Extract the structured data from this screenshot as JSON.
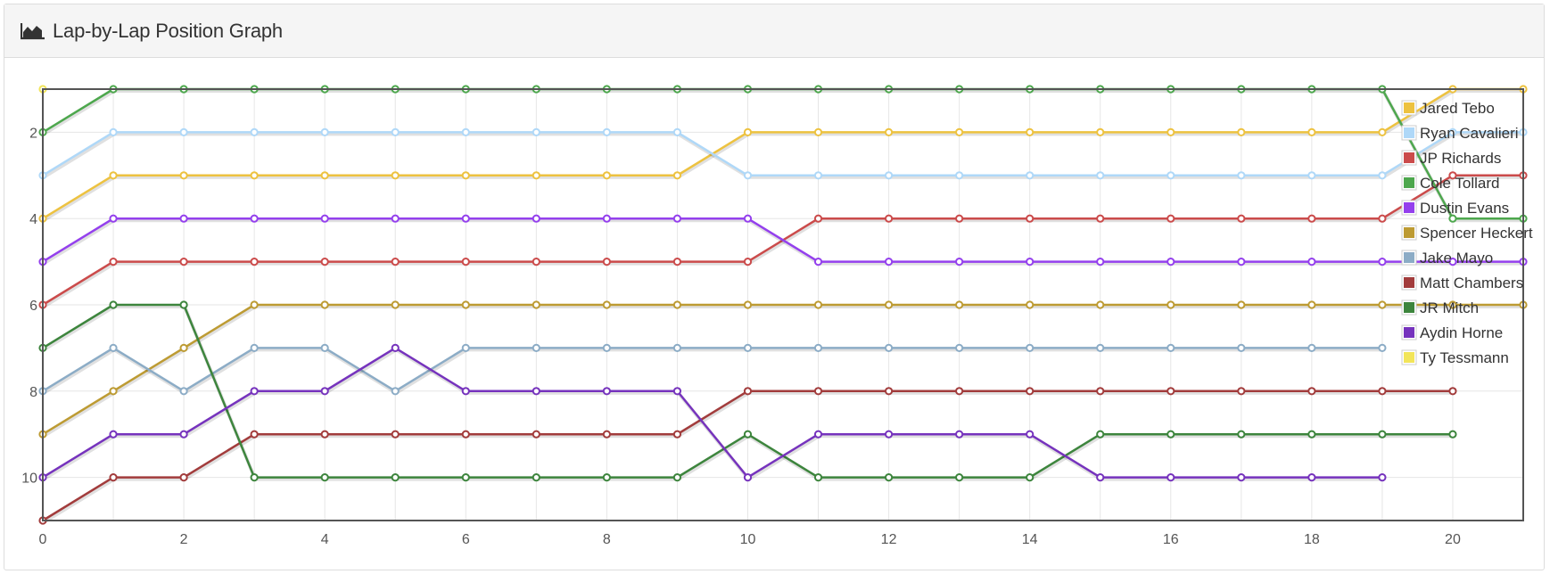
{
  "header": {
    "title": "Lap-by-Lap Position Graph",
    "icon": "area-chart-icon"
  },
  "chart_data": {
    "type": "line",
    "title": "Lap-by-Lap Position Graph",
    "xlabel": "",
    "ylabel": "",
    "xlim": [
      0,
      21
    ],
    "ylim": [
      11,
      1
    ],
    "y_inverted": true,
    "grid": true,
    "legend_position": "top-right",
    "x_ticks": [
      0,
      2,
      4,
      6,
      8,
      10,
      12,
      14,
      16,
      18,
      20
    ],
    "y_ticks": [
      2,
      4,
      6,
      8,
      10
    ],
    "series": [
      {
        "name": "Jared Tebo",
        "color": "#edc240",
        "x": [
          0,
          1,
          2,
          3,
          4,
          5,
          6,
          7,
          8,
          9,
          10,
          11,
          12,
          13,
          14,
          15,
          16,
          17,
          18,
          19,
          20,
          21
        ],
        "values": [
          4,
          3,
          3,
          3,
          3,
          3,
          3,
          3,
          3,
          3,
          2,
          2,
          2,
          2,
          2,
          2,
          2,
          2,
          2,
          2,
          1,
          1
        ]
      },
      {
        "name": "Ryan Cavalieri",
        "color": "#afd8f8",
        "x": [
          0,
          1,
          2,
          3,
          4,
          5,
          6,
          7,
          8,
          9,
          10,
          11,
          12,
          13,
          14,
          15,
          16,
          17,
          18,
          19,
          20,
          21
        ],
        "values": [
          3,
          2,
          2,
          2,
          2,
          2,
          2,
          2,
          2,
          2,
          3,
          3,
          3,
          3,
          3,
          3,
          3,
          3,
          3,
          3,
          2,
          2
        ]
      },
      {
        "name": "JP Richards",
        "color": "#cb4b4b",
        "x": [
          0,
          1,
          2,
          3,
          4,
          5,
          6,
          7,
          8,
          9,
          10,
          11,
          12,
          13,
          14,
          15,
          16,
          17,
          18,
          19,
          20,
          21
        ],
        "values": [
          6,
          5,
          5,
          5,
          5,
          5,
          5,
          5,
          5,
          5,
          5,
          4,
          4,
          4,
          4,
          4,
          4,
          4,
          4,
          4,
          3,
          3
        ]
      },
      {
        "name": "Cole Tollard",
        "color": "#4da74d",
        "x": [
          0,
          1,
          2,
          3,
          4,
          5,
          6,
          7,
          8,
          9,
          10,
          11,
          12,
          13,
          14,
          15,
          16,
          17,
          18,
          19,
          20,
          21
        ],
        "values": [
          2,
          1,
          1,
          1,
          1,
          1,
          1,
          1,
          1,
          1,
          1,
          1,
          1,
          1,
          1,
          1,
          1,
          1,
          1,
          1,
          4,
          4
        ]
      },
      {
        "name": "Dustin Evans",
        "color": "#9440ed",
        "x": [
          0,
          1,
          2,
          3,
          4,
          5,
          6,
          7,
          8,
          9,
          10,
          11,
          12,
          13,
          14,
          15,
          16,
          17,
          18,
          19,
          20,
          21
        ],
        "values": [
          5,
          4,
          4,
          4,
          4,
          4,
          4,
          4,
          4,
          4,
          4,
          5,
          5,
          5,
          5,
          5,
          5,
          5,
          5,
          5,
          5,
          5
        ]
      },
      {
        "name": "Spencer Heckert",
        "color": "#bd9b33",
        "x": [
          0,
          1,
          2,
          3,
          4,
          5,
          6,
          7,
          8,
          9,
          10,
          11,
          12,
          13,
          14,
          15,
          16,
          17,
          18,
          19,
          20,
          21
        ],
        "values": [
          9,
          8,
          7,
          6,
          6,
          6,
          6,
          6,
          6,
          6,
          6,
          6,
          6,
          6,
          6,
          6,
          6,
          6,
          6,
          6,
          6,
          6
        ]
      },
      {
        "name": "Jake Mayo",
        "color": "#8cacc6",
        "x": [
          0,
          1,
          2,
          3,
          4,
          5,
          6,
          7,
          8,
          9,
          10,
          11,
          12,
          13,
          14,
          15,
          16,
          17,
          18,
          19
        ],
        "values": [
          8,
          7,
          8,
          7,
          7,
          8,
          7,
          7,
          7,
          7,
          7,
          7,
          7,
          7,
          7,
          7,
          7,
          7,
          7,
          7
        ]
      },
      {
        "name": "Matt Chambers",
        "color": "#a23c3c",
        "x": [
          0,
          1,
          2,
          3,
          4,
          5,
          6,
          7,
          8,
          9,
          10,
          11,
          12,
          13,
          14,
          15,
          16,
          17,
          18,
          19,
          20
        ],
        "values": [
          11,
          10,
          10,
          9,
          9,
          9,
          9,
          9,
          9,
          9,
          8,
          8,
          8,
          8,
          8,
          8,
          8,
          8,
          8,
          8,
          8
        ]
      },
      {
        "name": "JR Mitch",
        "color": "#3d853d",
        "x": [
          0,
          1,
          2,
          3,
          4,
          5,
          6,
          7,
          8,
          9,
          10,
          11,
          12,
          13,
          14,
          15,
          16,
          17,
          18,
          19,
          20
        ],
        "values": [
          7,
          6,
          6,
          10,
          10,
          10,
          10,
          10,
          10,
          10,
          9,
          10,
          10,
          10,
          10,
          9,
          9,
          9,
          9,
          9,
          9
        ]
      },
      {
        "name": "Aydin Horne",
        "color": "#7633bd",
        "x": [
          0,
          1,
          2,
          3,
          4,
          5,
          6,
          7,
          8,
          9,
          10,
          11,
          12,
          13,
          14,
          15,
          16,
          17,
          18,
          19
        ],
        "values": [
          10,
          9,
          9,
          8,
          8,
          7,
          8,
          8,
          8,
          8,
          10,
          9,
          9,
          9,
          9,
          10,
          10,
          10,
          10,
          10
        ]
      },
      {
        "name": "Ty Tessmann",
        "color": "#f2e55a",
        "x": [
          0
        ],
        "values": [
          1
        ]
      }
    ]
  }
}
